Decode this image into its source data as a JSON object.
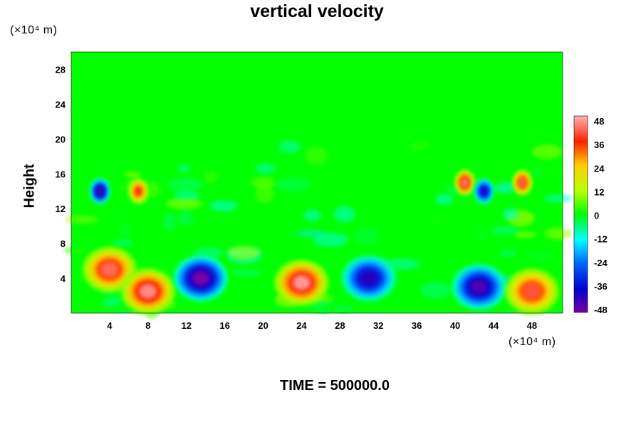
{
  "chart_data": {
    "type": "heatmap",
    "title": "vertical velocity",
    "ylabel": "Height",
    "x_unit": "(×10⁴ m)",
    "y_unit": "(×10⁴ m)",
    "x_ticks": [
      4,
      8,
      12,
      16,
      20,
      24,
      28,
      32,
      36,
      40,
      44,
      48
    ],
    "y_ticks": [
      4,
      8,
      12,
      16,
      20,
      24,
      28
    ],
    "xlim": [
      0,
      51.2
    ],
    "ylim": [
      0,
      30
    ],
    "colorbar": {
      "ticks": [
        48,
        36,
        24,
        12,
        0,
        -12,
        -24,
        -36,
        -48
      ],
      "range": [
        -48,
        48
      ]
    },
    "features": [
      {
        "x": 4,
        "y": 5,
        "v": 42
      },
      {
        "x": 8,
        "y": 2.5,
        "v": 45
      },
      {
        "x": 13.5,
        "y": 4,
        "v": -48
      },
      {
        "x": 24,
        "y": 3.5,
        "v": 46
      },
      {
        "x": 31,
        "y": 4,
        "v": -40
      },
      {
        "x": 42.5,
        "y": 3,
        "v": -44
      },
      {
        "x": 48,
        "y": 2.5,
        "v": 40
      },
      {
        "x": 3,
        "y": 14,
        "v": -44
      },
      {
        "x": 7,
        "y": 14,
        "v": 36
      },
      {
        "x": 41,
        "y": 15,
        "v": 45
      },
      {
        "x": 47,
        "y": 15,
        "v": 42
      },
      {
        "x": 43,
        "y": 14,
        "v": -38
      }
    ]
  },
  "footer": {
    "time_label": "TIME = 500000.0"
  }
}
